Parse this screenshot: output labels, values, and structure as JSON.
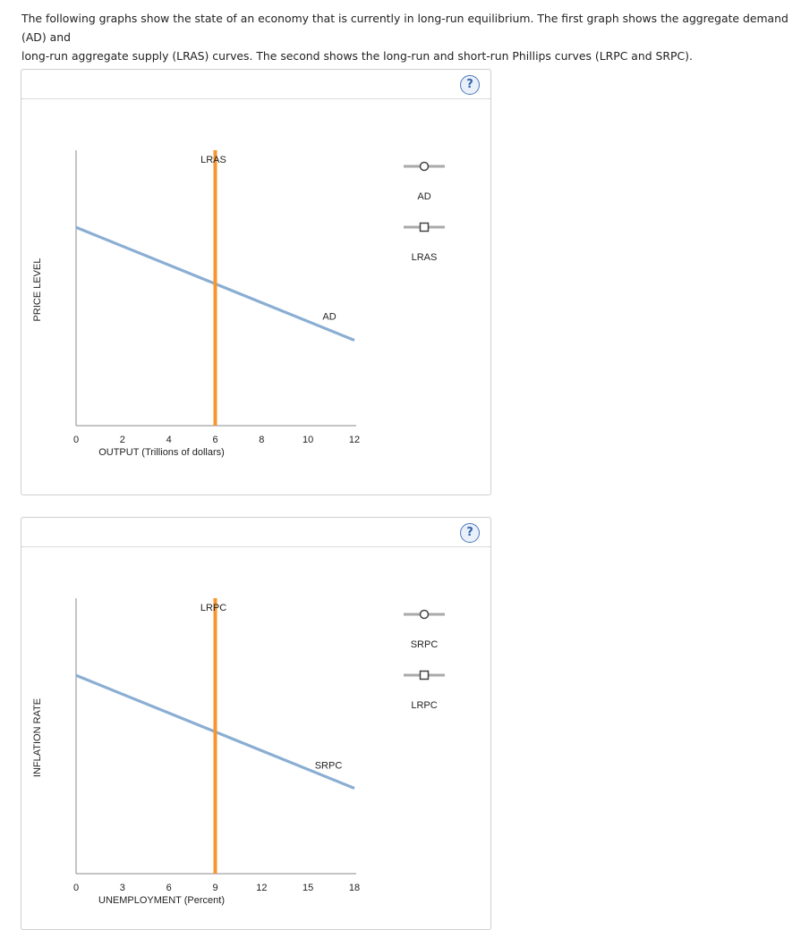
{
  "intro": {
    "line1": "The following graphs show the state of an economy that is currently in long-run equilibrium. The first graph shows the aggregate demand (AD) and",
    "line2": "long-run aggregate supply (LRAS) curves. The second shows the long-run and short-run Phillips curves (LRPC and SRPC)."
  },
  "help_label": "?",
  "chart_data": [
    {
      "type": "line",
      "title": "",
      "xlabel": "OUTPUT (Trillions of dollars)",
      "ylabel": "PRICE LEVEL",
      "xlim": [
        0,
        12
      ],
      "xticks": [
        "0",
        "2",
        "4",
        "6",
        "8",
        "10",
        "12"
      ],
      "grid": false,
      "legend_position": "right",
      "series": [
        {
          "name": "AD",
          "kind": "downward-sloping",
          "x": [
            0,
            12
          ],
          "y_relative": [
            0.72,
            0.31
          ],
          "color": "#8aaed3",
          "legend_marker": "circle"
        },
        {
          "name": "LRAS",
          "kind": "vertical",
          "x": [
            6,
            6
          ],
          "y_relative": [
            0,
            1
          ],
          "color": "#f7962f",
          "legend_marker": "square"
        }
      ],
      "curve_labels": [
        "LRAS",
        "AD"
      ],
      "legend": [
        "AD",
        "LRAS"
      ]
    },
    {
      "type": "line",
      "title": "",
      "xlabel": "UNEMPLOYMENT (Percent)",
      "ylabel": "INFLATION RATE",
      "xlim": [
        0,
        18
      ],
      "xticks": [
        "0",
        "3",
        "6",
        "9",
        "12",
        "15",
        "18"
      ],
      "grid": false,
      "legend_position": "right",
      "series": [
        {
          "name": "SRPC",
          "kind": "downward-sloping",
          "x": [
            0,
            18
          ],
          "y_relative": [
            0.72,
            0.31
          ],
          "color": "#8aaed3",
          "legend_marker": "circle"
        },
        {
          "name": "LRPC",
          "kind": "vertical",
          "x": [
            9,
            9
          ],
          "y_relative": [
            0,
            1
          ],
          "color": "#f7962f",
          "legend_marker": "square"
        }
      ],
      "curve_labels": [
        "LRPC",
        "SRPC"
      ],
      "legend": [
        "SRPC",
        "LRPC"
      ]
    }
  ]
}
